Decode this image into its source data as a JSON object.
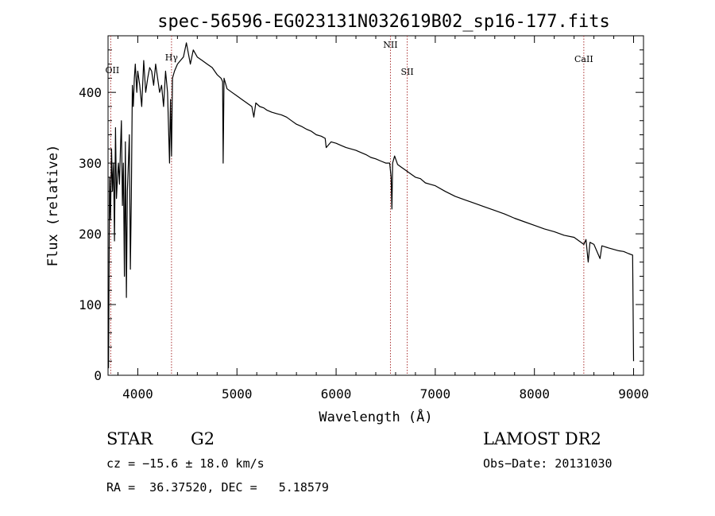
{
  "chart_data": {
    "type": "line",
    "title": "spec-56596-EG023131N032619B02_sp16-177.fits",
    "xlabel": "Wavelength (Å)",
    "ylabel": "Flux (relative)",
    "xlim": [
      3700,
      9100
    ],
    "ylim": [
      0,
      480
    ],
    "x_ticks": [
      4000,
      5000,
      6000,
      7000,
      8000,
      9000
    ],
    "x_tick_labels": [
      "4000",
      "5000",
      "6000",
      "7000",
      "8000",
      "9000"
    ],
    "y_ticks": [
      0,
      100,
      200,
      300,
      400
    ],
    "y_tick_labels": [
      "0",
      "100",
      "200",
      "300",
      "400"
    ],
    "grid": false,
    "line_color": "#000000",
    "marker_color": "#aa3333",
    "lines": [
      {
        "label": "OII",
        "wavelength": 3727
      },
      {
        "label": "Hγ",
        "wavelength": 4340
      },
      {
        "label": "NII",
        "wavelength": 6548
      },
      {
        "label": "SII",
        "wavelength": 6717
      },
      {
        "label": "CaII",
        "wavelength": 8498
      }
    ],
    "series": [
      {
        "x": [
          3705,
          3715,
          3725,
          3735,
          3745,
          3755,
          3765,
          3775,
          3785,
          3795,
          3805,
          3815,
          3825,
          3835,
          3845,
          3855,
          3865,
          3875,
          3885,
          3895,
          3905,
          3915,
          3925,
          3935,
          3945,
          3955,
          3965,
          3975,
          3990,
          4000,
          4020,
          4040,
          4060,
          4080,
          4100,
          4120,
          4140,
          4160,
          4180,
          4200,
          4220,
          4240,
          4260,
          4280,
          4300,
          4320,
          4330,
          4340,
          4350,
          4370,
          4400,
          4430,
          4460,
          4490,
          4510,
          4530,
          4560,
          4600,
          4650,
          4700,
          4750,
          4800,
          4840,
          4855,
          4861,
          4870,
          4900,
          4950,
          5000,
          5050,
          5100,
          5150,
          5170,
          5190,
          5230,
          5270,
          5300,
          5350,
          5400,
          5450,
          5500,
          5550,
          5600,
          5650,
          5700,
          5750,
          5800,
          5850,
          5890,
          5900,
          5950,
          6000,
          6050,
          6100,
          6150,
          6200,
          6250,
          6300,
          6350,
          6400,
          6450,
          6500,
          6540,
          6555,
          6563,
          6570,
          6590,
          6620,
          6650,
          6700,
          6750,
          6800,
          6850,
          6900,
          6950,
          7000,
          7100,
          7200,
          7300,
          7400,
          7500,
          7600,
          7700,
          7800,
          7900,
          8000,
          8100,
          8200,
          8300,
          8400,
          8498,
          8520,
          8542,
          8560,
          8600,
          8662,
          8680,
          8750,
          8800,
          8850,
          8900,
          8950,
          8990,
          9000
        ],
        "y": [
          10,
          280,
          220,
          320,
          260,
          300,
          190,
          350,
          250,
          280,
          300,
          270,
          320,
          360,
          240,
          300,
          140,
          330,
          110,
          260,
          300,
          340,
          150,
          250,
          410,
          380,
          420,
          440,
          400,
          430,
          410,
          380,
          445,
          400,
          420,
          435,
          430,
          410,
          440,
          420,
          400,
          410,
          380,
          430,
          400,
          300,
          390,
          310,
          420,
          430,
          440,
          445,
          450,
          470,
          455,
          440,
          460,
          450,
          445,
          440,
          435,
          425,
          420,
          415,
          300,
          420,
          405,
          400,
          395,
          390,
          385,
          380,
          365,
          385,
          380,
          378,
          375,
          372,
          370,
          368,
          365,
          360,
          355,
          352,
          348,
          345,
          340,
          338,
          335,
          322,
          330,
          328,
          325,
          322,
          320,
          318,
          315,
          312,
          308,
          306,
          303,
          300,
          300,
          280,
          235,
          300,
          310,
          298,
          295,
          290,
          285,
          280,
          278,
          272,
          270,
          268,
          260,
          253,
          248,
          243,
          238,
          233,
          228,
          222,
          217,
          212,
          207,
          203,
          198,
          195,
          185,
          192,
          160,
          188,
          185,
          165,
          183,
          180,
          178,
          176,
          175,
          172,
          170,
          20
        ]
      }
    ]
  },
  "footer": {
    "object_class": "STAR",
    "subclass": "G2",
    "survey": "LAMOST DR2",
    "redshift_line": "cz = −15.6 ± 18.0 km/s",
    "obs_date": "Obs−Date: 20131030",
    "coords": "RA =  36.37520, DEC =   5.18579"
  }
}
